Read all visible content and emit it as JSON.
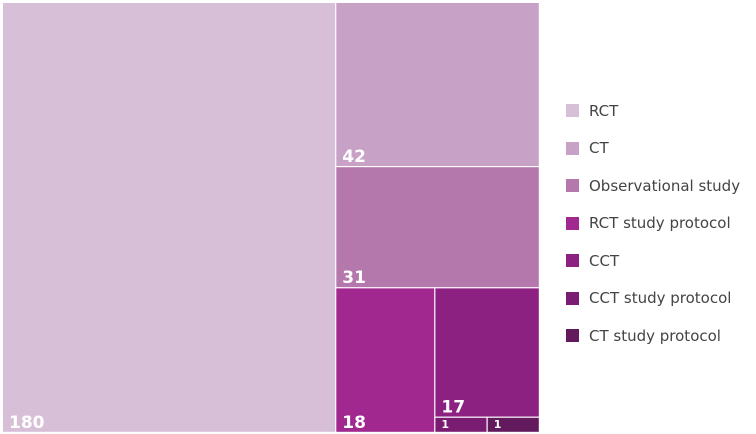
{
  "chart_data": {
    "type": "treemap",
    "title": "",
    "series": [
      {
        "name": "RCT",
        "value": 180,
        "color": "#d8bfd8"
      },
      {
        "name": "CT",
        "value": 42,
        "color": "#c7a1c6"
      },
      {
        "name": "Observational study",
        "value": 31,
        "color": "#b578ad"
      },
      {
        "name": "RCT study protocol",
        "value": 18,
        "color": "#a0288f"
      },
      {
        "name": "CCT",
        "value": 17,
        "color": "#8c2182"
      },
      {
        "name": "CCT study protocol",
        "value": 1,
        "color": "#7a1c72"
      },
      {
        "name": "CT study protocol",
        "value": 1,
        "color": "#621a5c"
      }
    ],
    "legend_position": "right"
  }
}
